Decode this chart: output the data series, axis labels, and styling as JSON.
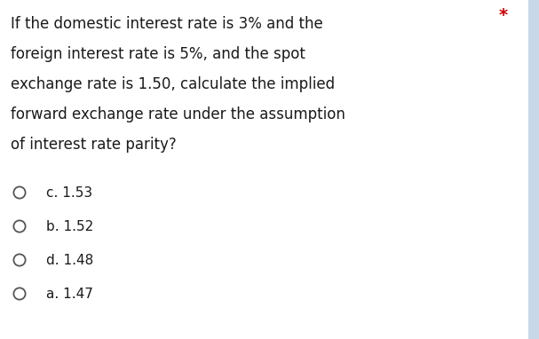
{
  "question_lines": [
    "If the domestic interest rate is 3% and the",
    "foreign interest rate is 5%, and the spot",
    "exchange rate is 1.50, calculate the implied",
    "forward exchange rate under the assumption",
    "of interest rate parity?"
  ],
  "options": [
    "c. 1.53",
    "b. 1.52",
    "d. 1.48",
    "a. 1.47"
  ],
  "asterisk": "*",
  "bg_color": "#ffffff",
  "text_color": "#1a1a1a",
  "asterisk_color": "#cc0000",
  "question_fontsize": 12.0,
  "option_fontsize": 11.0,
  "asterisk_fontsize": 14,
  "circle_color": "#555555",
  "right_bar_color": "#c8d8e8"
}
